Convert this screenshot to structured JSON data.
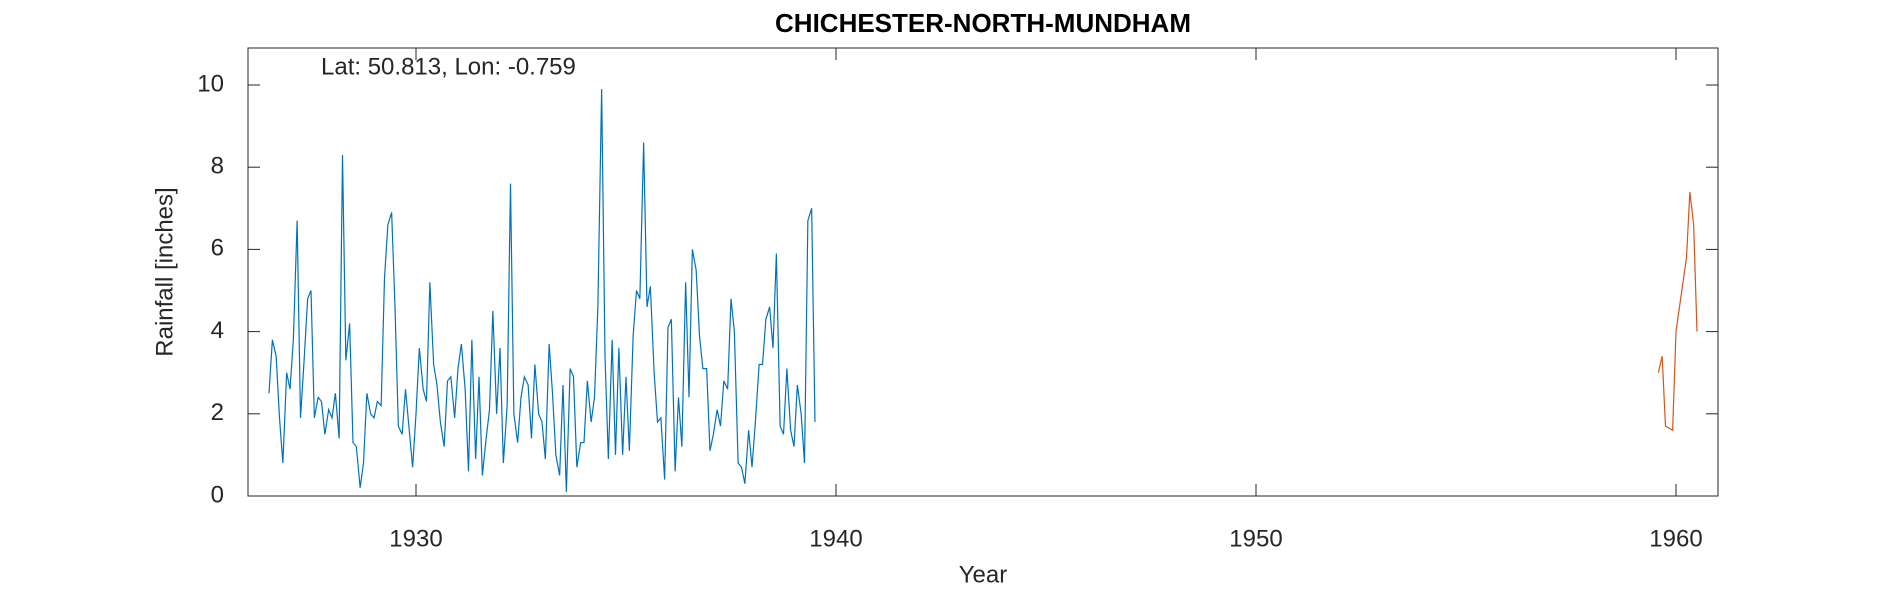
{
  "chart_data": {
    "type": "line",
    "title": "CHICHESTER-NORTH-MUNDHAM",
    "annotation": "Lat: 50.813, Lon: -0.759",
    "x_label": "Year",
    "y_label": "Rainfall [inches]",
    "xlim": [
      1926,
      1961
    ],
    "xticks": [
      1930,
      1940,
      1950,
      1960
    ],
    "ylim": [
      0,
      10.9
    ],
    "yticks": [
      0,
      2,
      4,
      6,
      8,
      10
    ],
    "series": [
      {
        "color": "#0072BD",
        "x": [
          1926.5,
          1926.58,
          1926.67,
          1926.75,
          1926.83,
          1926.92,
          1927.0,
          1927.08,
          1927.17,
          1927.25,
          1927.33,
          1927.42,
          1927.5,
          1927.58,
          1927.67,
          1927.75,
          1927.83,
          1927.92,
          1928.0,
          1928.08,
          1928.17,
          1928.25,
          1928.33,
          1928.42,
          1928.5,
          1928.58,
          1928.67,
          1928.75,
          1928.83,
          1928.92,
          1929.0,
          1929.08,
          1929.17,
          1929.25,
          1929.33,
          1929.42,
          1929.5,
          1929.58,
          1929.67,
          1929.75,
          1929.83,
          1929.92,
          1930.0,
          1930.08,
          1930.17,
          1930.25,
          1930.33,
          1930.42,
          1930.5,
          1930.58,
          1930.67,
          1930.75,
          1930.83,
          1930.92,
          1931.0,
          1931.08,
          1931.17,
          1931.25,
          1931.33,
          1931.42,
          1931.5,
          1931.58,
          1931.67,
          1931.75,
          1931.83,
          1931.92,
          1932.0,
          1932.08,
          1932.17,
          1932.25,
          1932.33,
          1932.42,
          1932.5,
          1932.58,
          1932.67,
          1932.75,
          1932.83,
          1932.92,
          1933.0,
          1933.08,
          1933.17,
          1933.25,
          1933.33,
          1933.42,
          1933.5,
          1933.58,
          1933.67,
          1933.75,
          1933.83,
          1933.92,
          1934.0,
          1934.08,
          1934.17,
          1934.25,
          1934.33,
          1934.42,
          1934.5,
          1934.58,
          1934.67,
          1934.75,
          1934.83,
          1934.92,
          1935.0,
          1935.08,
          1935.17,
          1935.25,
          1935.33,
          1935.42,
          1935.5,
          1935.58,
          1935.67,
          1935.75,
          1935.83,
          1935.92,
          1936.0,
          1936.08,
          1936.17,
          1936.25,
          1936.33,
          1936.42,
          1936.5,
          1936.58,
          1936.67,
          1936.75,
          1936.83,
          1936.92,
          1937.0,
          1937.08,
          1937.17,
          1937.25,
          1937.33,
          1937.42,
          1937.5,
          1937.58,
          1937.67,
          1937.75,
          1937.83,
          1937.92,
          1938.0,
          1938.08,
          1938.17,
          1938.25,
          1938.33,
          1938.42,
          1938.5,
          1938.58,
          1938.67,
          1938.75,
          1938.83,
          1938.92,
          1939.0,
          1939.08,
          1939.17,
          1939.25,
          1939.33,
          1939.42,
          1939.5
        ],
        "values": [
          2.5,
          3.8,
          3.4,
          1.9,
          0.8,
          3.0,
          2.6,
          3.8,
          6.7,
          1.9,
          3.2,
          4.8,
          5.0,
          1.9,
          2.4,
          2.3,
          1.5,
          2.1,
          1.9,
          2.5,
          1.4,
          8.3,
          3.3,
          4.2,
          1.3,
          1.2,
          0.2,
          0.8,
          2.5,
          2.0,
          1.9,
          2.3,
          2.2,
          5.3,
          6.6,
          6.9,
          4.6,
          1.7,
          1.5,
          2.6,
          1.7,
          0.7,
          2.0,
          3.6,
          2.6,
          2.3,
          5.2,
          3.2,
          2.7,
          1.8,
          1.2,
          2.8,
          2.9,
          1.9,
          3.1,
          3.7,
          2.6,
          0.6,
          3.8,
          0.9,
          2.9,
          0.5,
          1.4,
          2.1,
          4.5,
          2.0,
          3.6,
          0.8,
          2.2,
          7.6,
          2.0,
          1.3,
          2.4,
          2.9,
          2.7,
          1.4,
          3.2,
          2.0,
          1.8,
          0.9,
          3.7,
          2.5,
          1.0,
          0.5,
          2.7,
          0.1,
          3.1,
          2.9,
          0.7,
          1.3,
          1.3,
          2.8,
          1.8,
          2.4,
          4.6,
          9.9,
          3.4,
          0.9,
          3.8,
          1.0,
          3.6,
          1.0,
          2.9,
          1.1,
          3.9,
          5.0,
          4.8,
          8.6,
          4.6,
          5.1,
          3.0,
          1.8,
          1.9,
          0.4,
          4.1,
          4.3,
          0.6,
          2.4,
          1.2,
          5.2,
          2.4,
          6.0,
          5.5,
          3.9,
          3.1,
          3.1,
          1.1,
          1.5,
          2.1,
          1.7,
          2.8,
          2.6,
          4.8,
          4.0,
          0.8,
          0.7,
          0.3,
          1.6,
          0.7,
          1.8,
          3.2,
          3.2,
          4.3,
          4.6,
          3.6,
          5.9,
          1.7,
          1.5,
          3.1,
          1.6,
          1.2,
          2.7,
          2.0,
          0.8,
          6.7,
          7.0,
          1.8
        ]
      },
      {
        "color": "#D95319",
        "x": [
          1959.58,
          1959.67,
          1959.75,
          1959.92,
          1960.0,
          1960.25,
          1960.33,
          1960.42,
          1960.5
        ],
        "values": [
          3.0,
          3.4,
          1.7,
          1.6,
          4.0,
          5.8,
          7.4,
          6.6,
          4.0
        ]
      }
    ]
  }
}
